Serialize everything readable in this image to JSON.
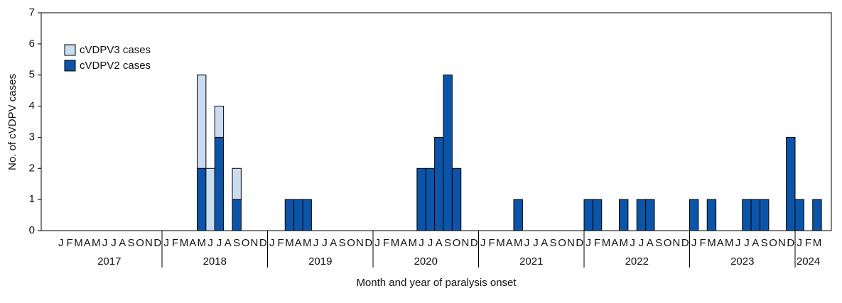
{
  "chart_data": {
    "type": "stacked-bar",
    "ylabel": "No. of cVDPV cases",
    "xlabel": "Month and year of paralysis onset",
    "ylim": [
      0,
      7
    ],
    "yticks": [
      0,
      1,
      2,
      3,
      4,
      5,
      6,
      7
    ],
    "legend": "top-left",
    "years": [
      "2017",
      "2018",
      "2019",
      "2020",
      "2021",
      "2022",
      "2023",
      "2024"
    ],
    "categories": [
      "J",
      "F",
      "M",
      "A",
      "M",
      "J",
      "J",
      "A",
      "S",
      "O",
      "N",
      "D",
      "J",
      "F",
      "M",
      "A",
      "M",
      "J",
      "J",
      "A",
      "S",
      "O",
      "N",
      "D",
      "J",
      "F",
      "M",
      "A",
      "M",
      "J",
      "J",
      "A",
      "S",
      "O",
      "N",
      "D",
      "J",
      "F",
      "M",
      "A",
      "M",
      "J",
      "J",
      "A",
      "S",
      "O",
      "N",
      "D",
      "J",
      "F",
      "M",
      "A",
      "M",
      "J",
      "J",
      "A",
      "S",
      "O",
      "N",
      "D",
      "J",
      "F",
      "M",
      "A",
      "M",
      "J",
      "J",
      "A",
      "S",
      "O",
      "N",
      "D",
      "J",
      "F",
      "M",
      "A",
      "M",
      "J",
      "J",
      "A",
      "S",
      "O",
      "N",
      "D",
      "J",
      "F",
      "M"
    ],
    "series": [
      {
        "name": "cVDPV2 cases",
        "color": "#0b54a8",
        "values": [
          0,
          0,
          0,
          0,
          0,
          0,
          0,
          0,
          0,
          0,
          0,
          0,
          0,
          0,
          0,
          0,
          2,
          0,
          3,
          0,
          1,
          0,
          0,
          0,
          0,
          0,
          1,
          1,
          1,
          0,
          0,
          0,
          0,
          0,
          0,
          0,
          0,
          0,
          0,
          0,
          0,
          2,
          2,
          3,
          5,
          2,
          0,
          0,
          0,
          0,
          0,
          0,
          1,
          0,
          0,
          0,
          0,
          0,
          0,
          0,
          1,
          1,
          0,
          0,
          1,
          0,
          1,
          1,
          0,
          0,
          0,
          0,
          1,
          0,
          1,
          0,
          0,
          0,
          1,
          1,
          1,
          0,
          0,
          3,
          1,
          0,
          1
        ]
      },
      {
        "name": "cVDPV3 cases",
        "color": "#c9dcf0",
        "values": [
          0,
          0,
          0,
          0,
          0,
          0,
          0,
          0,
          0,
          0,
          0,
          0,
          0,
          0,
          0,
          0,
          3,
          2,
          1,
          0,
          1,
          0,
          0,
          0,
          0,
          0,
          0,
          0,
          0,
          0,
          0,
          0,
          0,
          0,
          0,
          0,
          0,
          0,
          0,
          0,
          0,
          0,
          0,
          0,
          0,
          0,
          0,
          0,
          0,
          0,
          0,
          0,
          0,
          0,
          0,
          0,
          0,
          0,
          0,
          0,
          0,
          0,
          0,
          0,
          0,
          0,
          0,
          0,
          0,
          0,
          0,
          0,
          0,
          0,
          0,
          0,
          0,
          0,
          0,
          0,
          0,
          0,
          0,
          0,
          0,
          0,
          0
        ]
      }
    ]
  }
}
